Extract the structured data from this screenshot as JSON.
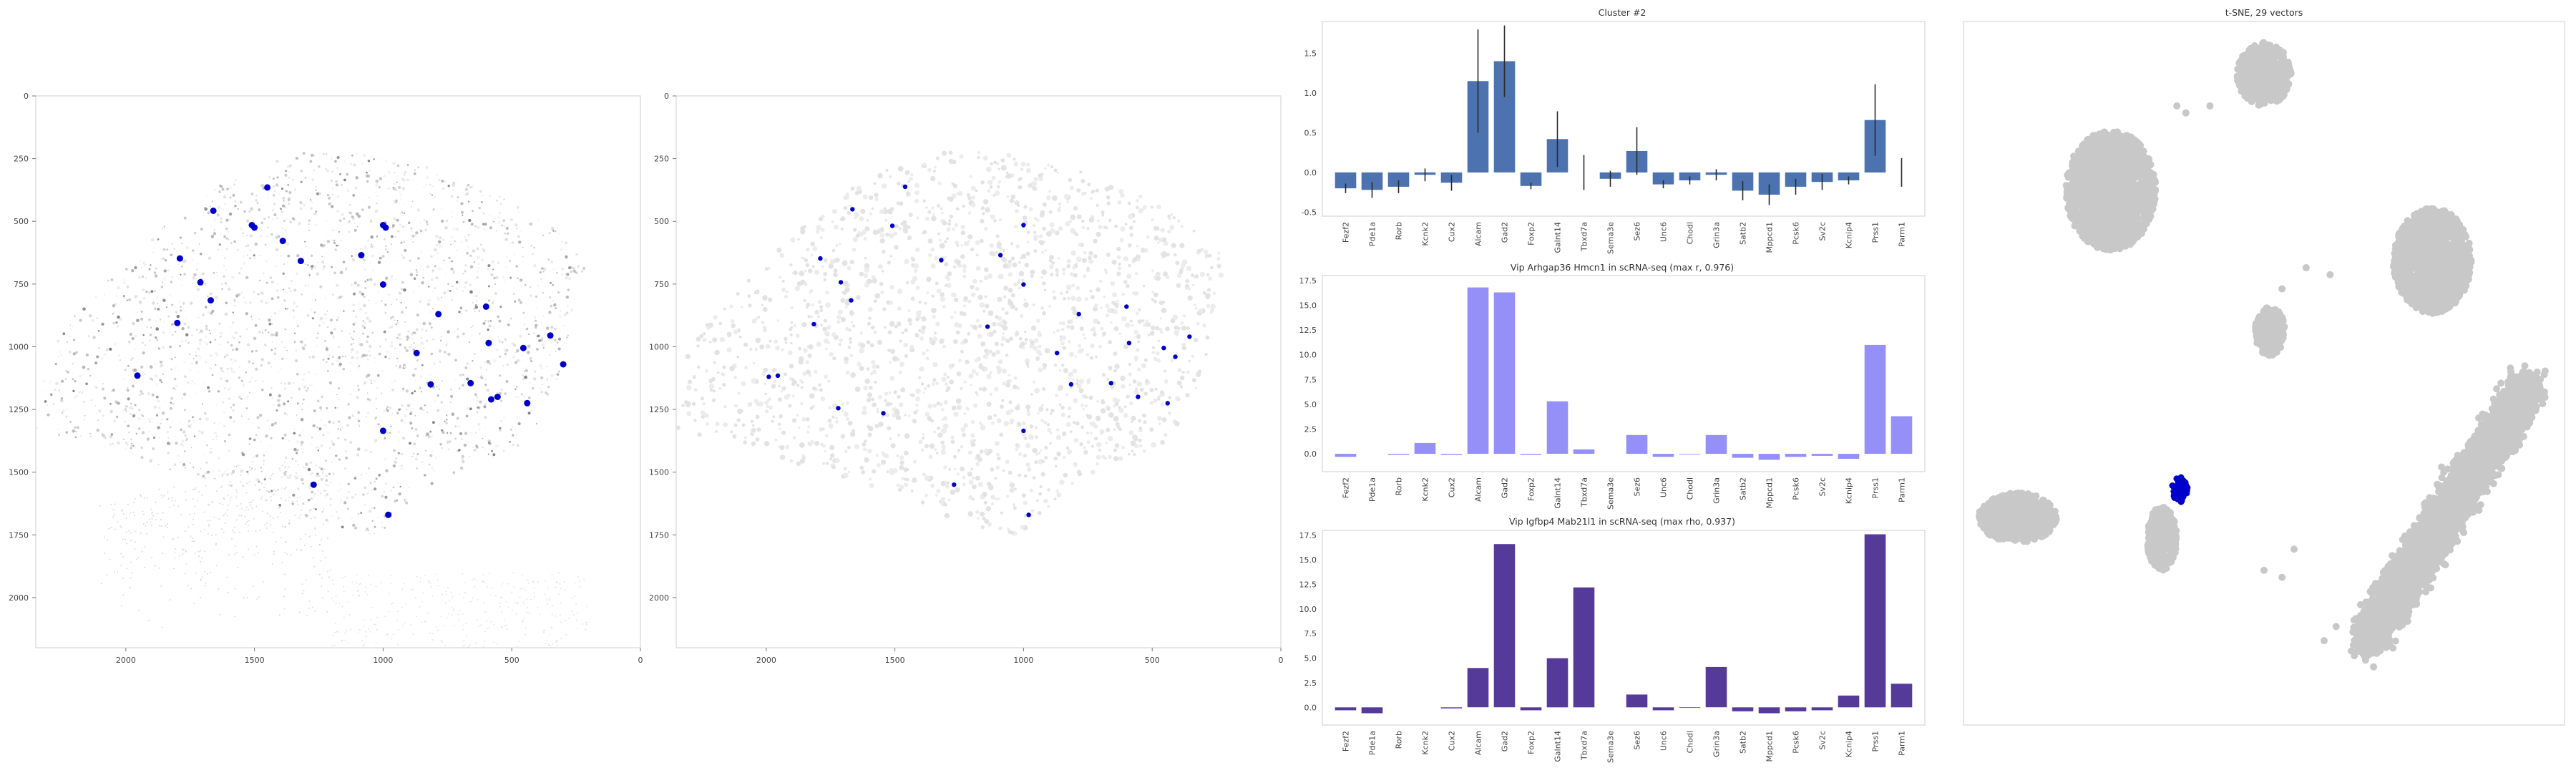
{
  "chart_data": [
    {
      "type": "scatter",
      "id": "spatial-left",
      "xlim": [
        2350,
        0
      ],
      "ylim": [
        2200,
        0
      ],
      "xticks": [
        2000,
        1500,
        1000,
        500,
        0
      ],
      "yticks": [
        0,
        250,
        500,
        750,
        1000,
        1250,
        1500,
        1750,
        2000
      ],
      "highlight_color": "#0000cc",
      "highlighted": [
        [
          1450,
          365
        ],
        [
          1660,
          458
        ],
        [
          1510,
          515
        ],
        [
          1500,
          525
        ],
        [
          1390,
          578
        ],
        [
          1000,
          515
        ],
        [
          990,
          525
        ],
        [
          1320,
          658
        ],
        [
          1085,
          635
        ],
        [
          1790,
          648
        ],
        [
          1710,
          743
        ],
        [
          1670,
          815
        ],
        [
          1000,
          752
        ],
        [
          1800,
          905
        ],
        [
          785,
          870
        ],
        [
          600,
          840
        ],
        [
          350,
          955
        ],
        [
          455,
          1005
        ],
        [
          870,
          1025
        ],
        [
          590,
          985
        ],
        [
          1955,
          1115
        ],
        [
          815,
          1150
        ],
        [
          660,
          1145
        ],
        [
          440,
          1225
        ],
        [
          555,
          1200
        ],
        [
          1000,
          1335
        ],
        [
          1270,
          1550
        ],
        [
          980,
          1670
        ],
        [
          300,
          1070
        ],
        [
          580,
          1210
        ]
      ]
    },
    {
      "type": "scatter",
      "id": "spatial-right",
      "xlim": [
        2350,
        0
      ],
      "ylim": [
        2200,
        0
      ],
      "xticks": [
        2000,
        1500,
        1000,
        500,
        0
      ],
      "yticks": [
        0,
        250,
        500,
        750,
        1000,
        1250,
        1500,
        1750,
        2000
      ],
      "highlight_color": "#0000cc",
      "highlighted": [
        [
          1460,
          362
        ],
        [
          1665,
          452
        ],
        [
          1510,
          518
        ],
        [
          1000,
          515
        ],
        [
          1320,
          655
        ],
        [
          1090,
          635
        ],
        [
          1790,
          648
        ],
        [
          1710,
          743
        ],
        [
          1670,
          815
        ],
        [
          1000,
          752
        ],
        [
          1815,
          910
        ],
        [
          785,
          870
        ],
        [
          600,
          840
        ],
        [
          355,
          960
        ],
        [
          455,
          1005
        ],
        [
          870,
          1025
        ],
        [
          590,
          985
        ],
        [
          1955,
          1115
        ],
        [
          815,
          1150
        ],
        [
          660,
          1145
        ],
        [
          440,
          1225
        ],
        [
          555,
          1200
        ],
        [
          1000,
          1335
        ],
        [
          1270,
          1550
        ],
        [
          980,
          1670
        ],
        [
          1545,
          1265
        ],
        [
          1720,
          1245
        ],
        [
          410,
          1040
        ],
        [
          1140,
          920
        ],
        [
          1990,
          1120
        ]
      ]
    },
    {
      "type": "bar",
      "id": "cluster-bars",
      "title": "Cluster #2",
      "categories": [
        "Fezf2",
        "Pde1a",
        "Rorb",
        "Kcnk2",
        "Cux2",
        "Alcam",
        "Gad2",
        "Foxp2",
        "Galnt14",
        "Tbxd7a",
        "Sema3e",
        "Sez6",
        "Unc6",
        "Chodl",
        "Grin3a",
        "Satb2",
        "Mppcd1",
        "Pcsk6",
        "Sv2c",
        "Kcnip4",
        "Prss1",
        "Parm1"
      ],
      "values": [
        -0.2,
        -0.22,
        -0.18,
        -0.03,
        -0.13,
        1.15,
        1.4,
        -0.17,
        0.42,
        0.0,
        -0.08,
        0.27,
        -0.15,
        -0.1,
        -0.03,
        -0.23,
        -0.28,
        -0.18,
        -0.12,
        -0.1,
        0.66,
        0.0
      ],
      "errors": [
        0.06,
        0.1,
        0.08,
        0.08,
        0.1,
        0.65,
        0.45,
        0.04,
        0.35,
        0.22,
        0.1,
        0.3,
        0.05,
        0.05,
        0.07,
        0.12,
        0.13,
        0.1,
        0.1,
        0.05,
        0.45,
        0.18
      ],
      "ylim": [
        -0.55,
        1.9
      ],
      "yticks": [
        -0.5,
        0.0,
        0.5,
        1.0,
        1.5
      ],
      "yticklabels": [
        "-0.5",
        "0.0",
        "0.5",
        "1.0",
        "1.5"
      ],
      "color": "#4c72b0"
    },
    {
      "type": "bar",
      "id": "vip-hmcn1-bars",
      "title": "Vip Arhgap36 Hmcn1 in scRNA-seq (max r, 0.976)",
      "categories": [
        "Fezf2",
        "Pde1a",
        "Rorb",
        "Kcnk2",
        "Cux2",
        "Alcam",
        "Gad2",
        "Foxp2",
        "Galnt14",
        "Tbxd7a",
        "Sema3e",
        "Sez6",
        "Unc6",
        "Chodl",
        "Grin3a",
        "Satb2",
        "Mppcd1",
        "Pcsk6",
        "Sv2c",
        "Kcnip4",
        "Prss1",
        "Parm1"
      ],
      "values": [
        -0.3,
        0.0,
        -0.1,
        1.1,
        -0.1,
        16.8,
        16.3,
        -0.1,
        5.3,
        0.45,
        0.0,
        1.9,
        -0.3,
        -0.05,
        1.9,
        -0.4,
        -0.6,
        -0.3,
        -0.2,
        -0.5,
        11.0,
        3.8
      ],
      "ylim": [
        -1.8,
        18.0
      ],
      "yticks": [
        0,
        2.5,
        5,
        7.5,
        10,
        12.5,
        15,
        17.5
      ],
      "yticklabels": [
        "0.0",
        "2.5",
        "5.0",
        "7.5",
        "10.0",
        "12.5",
        "15.0",
        "17.5"
      ],
      "color": "#9490f8"
    },
    {
      "type": "bar",
      "id": "vip-mab21l1-bars",
      "title": "Vip Igfbp4 Mab21l1 in scRNA-seq (max rho, 0.937)",
      "categories": [
        "Fezf2",
        "Pde1a",
        "Rorb",
        "Kcnk2",
        "Cux2",
        "Alcam",
        "Gad2",
        "Foxp2",
        "Galnt14",
        "Tbxd7a",
        "Sema3e",
        "Sez6",
        "Unc6",
        "Chodl",
        "Grin3a",
        "Satb2",
        "Mppcd1",
        "Pcsk6",
        "Sv2c",
        "Kcnip4",
        "Prss1",
        "Parm1"
      ],
      "values": [
        -0.3,
        -0.6,
        0.0,
        0.0,
        -0.1,
        4.0,
        16.6,
        -0.3,
        5.0,
        12.2,
        0.0,
        1.3,
        -0.3,
        -0.05,
        4.1,
        -0.4,
        -0.6,
        -0.4,
        -0.3,
        1.2,
        17.6,
        2.4
      ],
      "ylim": [
        -1.8,
        18.0
      ],
      "yticks": [
        0,
        2.5,
        5,
        7.5,
        10,
        12.5,
        15,
        17.5
      ],
      "yticklabels": [
        "0.0",
        "2.5",
        "5.0",
        "7.5",
        "10.0",
        "12.5",
        "15.0",
        "17.5"
      ],
      "color": "#553a99"
    },
    {
      "type": "scatter",
      "id": "tsne",
      "title": "t-SNE, 29 vectors",
      "background_color": "#c8c8c8",
      "highlight_color": "#0000cc",
      "axes_hidden": true,
      "clusters": [
        {
          "name": "top",
          "cx": 0.5,
          "cy": 0.075,
          "rx": 0.045,
          "ry": 0.045
        },
        {
          "name": "upper-left",
          "cx": 0.245,
          "cy": 0.24,
          "rx": 0.075,
          "ry": 0.085
        },
        {
          "name": "right-mid",
          "cx": 0.78,
          "cy": 0.34,
          "rx": 0.065,
          "ry": 0.075
        },
        {
          "name": "small-center",
          "cx": 0.51,
          "cy": 0.44,
          "rx": 0.025,
          "ry": 0.035
        },
        {
          "name": "left",
          "cx": 0.09,
          "cy": 0.705,
          "rx": 0.065,
          "ry": 0.035
        },
        {
          "name": "center",
          "cx": 0.33,
          "cy": 0.735,
          "rx": 0.025,
          "ry": 0.045
        },
        {
          "name": "right-large",
          "cx": 0.78,
          "cy": 0.72,
          "rx": 0.14,
          "ry": 0.22
        }
      ],
      "highlighted_cluster": {
        "cx": 0.36,
        "cy": 0.665,
        "rx": 0.013,
        "ry": 0.018
      }
    }
  ]
}
